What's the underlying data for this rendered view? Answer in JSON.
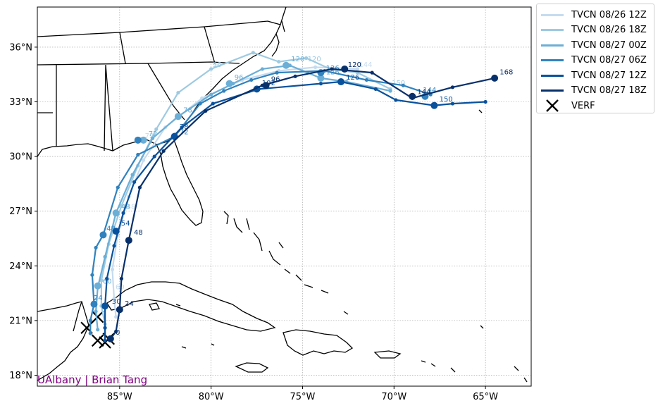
{
  "credit": "UAlbany | Brian Tang",
  "colors": {
    "land_outline": "#000000",
    "grid": "#999999",
    "credit": "#800080",
    "verf": "#000000"
  },
  "axes": {
    "lon_range": [
      -89.5,
      -62.5
    ],
    "lat_range": [
      17.4,
      38.2
    ],
    "x_ticks": [
      {
        "value": -85,
        "label": "85°W"
      },
      {
        "value": -80,
        "label": "80°W"
      },
      {
        "value": -75,
        "label": "75°W"
      },
      {
        "value": -70,
        "label": "70°W"
      },
      {
        "value": -65,
        "label": "65°W"
      }
    ],
    "y_ticks": [
      {
        "value": 18,
        "label": "18°N"
      },
      {
        "value": 21,
        "label": "21°N"
      },
      {
        "value": 24,
        "label": "24°N"
      },
      {
        "value": 27,
        "label": "27°N"
      },
      {
        "value": 30,
        "label": "30°N"
      },
      {
        "value": 33,
        "label": "33°N"
      },
      {
        "value": 36,
        "label": "36°N"
      }
    ],
    "grid": true
  },
  "legend": {
    "placement": "outside-top-right",
    "entries": [
      {
        "label": "TVCN 08/26 12Z",
        "color": "#c6dbef"
      },
      {
        "label": "TVCN 08/26 18Z",
        "color": "#9ecae1"
      },
      {
        "label": "TVCN 08/27 00Z",
        "color": "#6baed6"
      },
      {
        "label": "TVCN 08/27 06Z",
        "color": "#3182bd"
      },
      {
        "label": "TVCN 08/27 12Z",
        "color": "#08519c"
      },
      {
        "label": "TVCN 08/27 18Z",
        "color": "#08306b"
      },
      {
        "label": "VERF",
        "marker": "x",
        "color": "#000000"
      }
    ]
  },
  "tracks": [
    {
      "name": "TVCN 08/26 12Z",
      "color": "#c6dbef",
      "points": [
        [
          -85.2,
          21.2
        ],
        [
          -85.3,
          22.2
        ],
        [
          -85.4,
          23.8
        ],
        [
          -85.1,
          25.7
        ],
        [
          -84.5,
          27.8
        ],
        [
          -83.7,
          29.8
        ],
        [
          -82.5,
          31.6
        ],
        [
          -80.5,
          33.2
        ],
        [
          -78.3,
          34.2
        ],
        [
          -76.3,
          34.7
        ],
        [
          -74.3,
          34.9
        ],
        [
          -72.0,
          34.8
        ]
      ],
      "labels": [
        {
          "lon": -85.3,
          "lat": 22.6,
          "text": "60"
        },
        {
          "lon": -84.7,
          "lat": 27.0,
          "text": "48"
        },
        {
          "lon": -83.7,
          "lat": 30.9,
          "text": "72"
        },
        {
          "lon": -72.0,
          "lat": 34.8,
          "text": "144"
        }
      ]
    },
    {
      "name": "TVCN 08/26 18Z",
      "color": "#9ecae1",
      "points": [
        [
          -85.8,
          20.8
        ],
        [
          -86.0,
          21.8
        ],
        [
          -86.0,
          23.2
        ],
        [
          -85.6,
          25.2
        ],
        [
          -84.9,
          27.3
        ],
        [
          -84.0,
          29.5
        ],
        [
          -83.0,
          31.5
        ],
        [
          -81.8,
          33.5
        ],
        [
          -80.0,
          34.8
        ],
        [
          -77.7,
          35.7
        ],
        [
          -76.3,
          35.2
        ],
        [
          -74.8,
          35.4
        ],
        [
          -73.5,
          34.8
        ],
        [
          -72.0,
          34.6
        ],
        [
          -70.2,
          33.7
        ]
      ],
      "labels": [
        {
          "lon": -80.0,
          "lat": 34.8,
          "text": "96"
        },
        {
          "lon": -74.8,
          "lat": 35.1,
          "text": "120"
        },
        {
          "lon": -70.2,
          "lat": 33.8,
          "text": "150"
        }
      ]
    },
    {
      "name": "TVCN 08/27 00Z",
      "color": "#6baed6",
      "points": [
        [
          -86.2,
          20.5
        ],
        [
          -86.3,
          21.5
        ],
        [
          -86.2,
          22.8
        ],
        [
          -85.8,
          24.5
        ],
        [
          -85.2,
          26.9
        ],
        [
          -84.3,
          29.0
        ],
        [
          -83.2,
          31.0
        ],
        [
          -81.8,
          32.2
        ],
        [
          -80.0,
          33.4
        ],
        [
          -78.8,
          34.0
        ],
        [
          -77.2,
          34.8
        ],
        [
          -75.7,
          35.0
        ],
        [
          -74.0,
          34.3
        ],
        [
          -72.6,
          34.1
        ],
        [
          -70.2,
          33.6
        ]
      ],
      "big": [
        [
          -86.2,
          22.9
        ],
        [
          -85.2,
          26.9
        ],
        [
          -83.7,
          30.9
        ],
        [
          -81.8,
          32.2
        ],
        [
          -79.0,
          34.0
        ],
        [
          -75.9,
          35.0
        ],
        [
          -74.0,
          34.3
        ]
      ],
      "labels": [
        {
          "lon": -86.0,
          "lat": 22.9,
          "text": "60"
        },
        {
          "lon": -85.0,
          "lat": 27.0,
          "text": "48"
        },
        {
          "lon": -83.5,
          "lat": 31.0,
          "text": "72"
        },
        {
          "lon": -81.6,
          "lat": 32.3,
          "text": "78"
        },
        {
          "lon": -78.8,
          "lat": 34.1,
          "text": "96"
        },
        {
          "lon": -75.7,
          "lat": 35.1,
          "text": "120"
        },
        {
          "lon": -73.8,
          "lat": 34.4,
          "text": "126"
        }
      ]
    },
    {
      "name": "TVCN 08/27 06Z",
      "color": "#3182bd",
      "points": [
        [
          -86.6,
          20.3
        ],
        [
          -86.6,
          21.0
        ],
        [
          -86.4,
          21.9
        ],
        [
          -86.5,
          23.5
        ],
        [
          -86.3,
          25.0
        ],
        [
          -85.9,
          25.7
        ],
        [
          -85.1,
          28.3
        ],
        [
          -84.0,
          30.1
        ],
        [
          -82.0,
          31.1
        ],
        [
          -80.6,
          32.9
        ],
        [
          -79.3,
          33.6
        ],
        [
          -77.8,
          34.2
        ],
        [
          -76.4,
          34.6
        ],
        [
          -73.8,
          34.7
        ],
        [
          -71.5,
          34.2
        ],
        [
          -69.5,
          33.9
        ],
        [
          -68.0,
          33.4
        ]
      ],
      "big": [
        [
          -86.4,
          21.9
        ],
        [
          -85.9,
          25.7
        ],
        [
          -84.0,
          30.9
        ],
        [
          -82.0,
          31.1
        ],
        [
          -74.0,
          34.6
        ],
        [
          -68.3,
          33.3
        ]
      ],
      "labels": [
        {
          "lon": -86.5,
          "lat": 22.0,
          "text": "24"
        },
        {
          "lon": -85.8,
          "lat": 25.8,
          "text": "48"
        },
        {
          "lon": -81.8,
          "lat": 31.1,
          "text": "72"
        },
        {
          "lon": -73.8,
          "lat": 34.6,
          "text": "126"
        },
        {
          "lon": -68.5,
          "lat": 33.4,
          "text": "144"
        }
      ]
    },
    {
      "name": "TVCN 08/27 12Z",
      "color": "#08519c",
      "points": [
        [
          -85.8,
          19.9
        ],
        [
          -85.8,
          20.6
        ],
        [
          -85.8,
          21.8
        ],
        [
          -85.7,
          23.3
        ],
        [
          -85.3,
          25.1
        ],
        [
          -84.8,
          26.9
        ],
        [
          -84.2,
          28.6
        ],
        [
          -83.1,
          30.0
        ],
        [
          -81.6,
          31.6
        ],
        [
          -79.9,
          32.9
        ],
        [
          -77.4,
          33.7
        ],
        [
          -74.0,
          34.0
        ],
        [
          -72.9,
          34.1
        ],
        [
          -71.0,
          33.7
        ],
        [
          -69.9,
          33.1
        ],
        [
          -67.8,
          32.8
        ],
        [
          -66.8,
          32.9
        ],
        [
          -65.0,
          33.0
        ]
      ],
      "big": [
        [
          -85.8,
          21.8
        ],
        [
          -85.2,
          25.9
        ],
        [
          -82.0,
          31.1
        ],
        [
          -77.5,
          33.7
        ],
        [
          -72.9,
          34.1
        ],
        [
          -67.8,
          32.8
        ]
      ],
      "labels": [
        {
          "lon": -85.5,
          "lat": 21.8,
          "text": "30"
        },
        {
          "lon": -85.0,
          "lat": 26.1,
          "text": "54"
        },
        {
          "lon": -81.8,
          "lat": 31.4,
          "text": "78"
        },
        {
          "lon": -77.3,
          "lat": 33.8,
          "text": "102"
        },
        {
          "lon": -72.7,
          "lat": 34.1,
          "text": "126"
        },
        {
          "lon": -67.6,
          "lat": 32.9,
          "text": "150"
        }
      ]
    },
    {
      "name": "TVCN 08/27 18Z",
      "color": "#08306b",
      "points": [
        [
          -85.5,
          20.0
        ],
        [
          -85.2,
          20.4
        ],
        [
          -85.0,
          21.6
        ],
        [
          -84.9,
          23.3
        ],
        [
          -84.5,
          25.4
        ],
        [
          -83.9,
          28.3
        ],
        [
          -82.6,
          30.3
        ],
        [
          -80.3,
          32.5
        ],
        [
          -77.2,
          33.9
        ],
        [
          -75.4,
          34.4
        ],
        [
          -73.4,
          34.8
        ],
        [
          -71.2,
          34.6
        ],
        [
          -69.0,
          33.2
        ],
        [
          -66.8,
          33.8
        ],
        [
          -64.5,
          34.3
        ]
      ],
      "big": [
        [
          -85.5,
          20.0
        ],
        [
          -85.0,
          21.6
        ],
        [
          -84.5,
          25.4
        ],
        [
          -77.0,
          33.9
        ],
        [
          -72.7,
          34.8
        ],
        [
          -69.0,
          33.3
        ],
        [
          -64.5,
          34.3
        ]
      ],
      "labels": [
        {
          "lon": -85.3,
          "lat": 20.1,
          "text": "0"
        },
        {
          "lon": -84.8,
          "lat": 21.7,
          "text": "24"
        },
        {
          "lon": -84.3,
          "lat": 25.6,
          "text": "48"
        },
        {
          "lon": -76.8,
          "lat": 34.0,
          "text": "96"
        },
        {
          "lon": -72.6,
          "lat": 34.8,
          "text": "120"
        },
        {
          "lon": -68.8,
          "lat": 33.3,
          "text": "144"
        },
        {
          "lon": -64.3,
          "lat": 34.4,
          "text": "168"
        }
      ]
    }
  ],
  "verf": [
    [
      -86.8,
      20.6
    ],
    [
      -86.2,
      21.2
    ],
    [
      -86.2,
      19.9
    ],
    [
      -85.8,
      19.8
    ],
    [
      -85.6,
      20.0
    ]
  ]
}
